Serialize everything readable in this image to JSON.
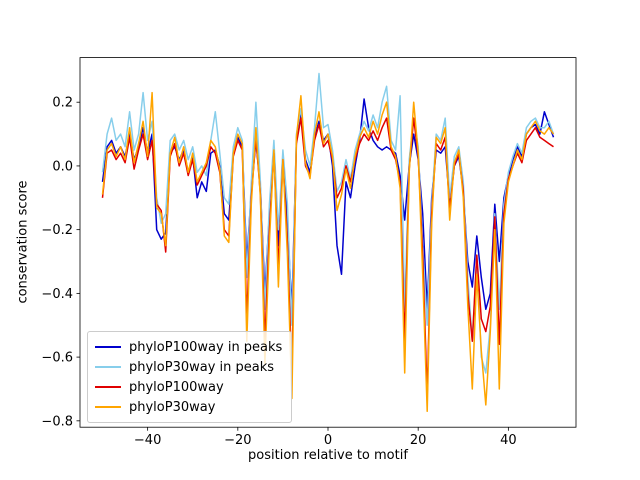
{
  "chart_data": {
    "type": "line",
    "title": "",
    "xlabel": "position relative to motif",
    "ylabel": "conservation score",
    "xlim": [
      -55,
      55
    ],
    "ylim": [
      -0.82,
      0.34
    ],
    "grid": false,
    "legend_position": "lower left",
    "xticks": {
      "values": [
        -40,
        -20,
        0,
        20,
        40
      ],
      "labels": [
        "−40",
        "−20",
        "0",
        "20",
        "40"
      ]
    },
    "yticks": {
      "values": [
        0.2,
        0.0,
        -0.2,
        -0.4,
        -0.6,
        -0.8
      ],
      "labels": [
        "0.2",
        "0.0",
        "−0.2",
        "−0.4",
        "−0.6",
        "−0.8"
      ]
    },
    "x": [
      -50,
      -49,
      -48,
      -47,
      -46,
      -45,
      -44,
      -43,
      -42,
      -41,
      -40,
      -39,
      -38,
      -37,
      -36,
      -35,
      -34,
      -33,
      -32,
      -31,
      -30,
      -29,
      -28,
      -27,
      -26,
      -25,
      -24,
      -23,
      -22,
      -21,
      -20,
      -19,
      -18,
      -17,
      -16,
      -15,
      -14,
      -13,
      -12,
      -11,
      -10,
      -9,
      -8,
      -7,
      -6,
      -5,
      -4,
      -3,
      -2,
      -1,
      0,
      1,
      2,
      3,
      4,
      5,
      6,
      7,
      8,
      9,
      10,
      11,
      12,
      13,
      14,
      15,
      16,
      17,
      18,
      19,
      20,
      21,
      22,
      23,
      24,
      25,
      26,
      27,
      28,
      29,
      30,
      31,
      32,
      33,
      34,
      35,
      36,
      37,
      38,
      39,
      40,
      41,
      42,
      43,
      44,
      45,
      46,
      47,
      48,
      49,
      50
    ],
    "series": [
      {
        "name": "phyloP100way in peaks",
        "color": "#0000cd",
        "values": [
          -0.05,
          0.06,
          0.08,
          0.04,
          0.06,
          0.03,
          0.1,
          0.02,
          0.06,
          0.12,
          0.04,
          0.1,
          -0.2,
          -0.23,
          -0.21,
          0.04,
          0.06,
          0.02,
          0.05,
          -0.02,
          0.03,
          -0.1,
          -0.05,
          -0.08,
          0.04,
          0.05,
          0.0,
          -0.15,
          -0.17,
          0.04,
          0.09,
          0.06,
          -0.3,
          -0.08,
          0.08,
          -0.07,
          -0.4,
          -0.15,
          0.05,
          -0.25,
          0.03,
          -0.18,
          -0.45,
          0.08,
          0.16,
          0.02,
          -0.02,
          0.09,
          0.14,
          0.08,
          0.1,
          0.0,
          -0.25,
          -0.34,
          -0.05,
          -0.1,
          0.0,
          0.08,
          0.21,
          0.12,
          0.08,
          0.06,
          0.05,
          0.06,
          0.05,
          0.04,
          -0.03,
          -0.17,
          0.0,
          0.1,
          0.02,
          -0.15,
          -0.45,
          -0.1,
          0.05,
          0.04,
          0.06,
          -0.12,
          0.0,
          0.03,
          -0.08,
          -0.3,
          -0.38,
          -0.22,
          -0.35,
          -0.45,
          -0.4,
          -0.12,
          -0.3,
          -0.1,
          -0.03,
          0.02,
          0.06,
          0.03,
          0.1,
          0.12,
          0.13,
          0.1,
          0.17,
          0.13,
          0.09
        ]
      },
      {
        "name": "phyloP30way in peaks",
        "color": "#87ceeb",
        "values": [
          -0.02,
          0.1,
          0.15,
          0.08,
          0.1,
          0.06,
          0.17,
          0.05,
          0.1,
          0.23,
          0.08,
          0.14,
          -0.1,
          -0.18,
          -0.15,
          0.08,
          0.1,
          0.05,
          0.08,
          0.02,
          0.06,
          -0.02,
          0.0,
          -0.03,
          0.08,
          0.17,
          0.04,
          -0.1,
          -0.12,
          0.06,
          0.12,
          0.08,
          -0.35,
          -0.05,
          0.2,
          -0.05,
          -0.45,
          -0.12,
          0.08,
          -0.2,
          0.05,
          -0.12,
          -0.5,
          0.1,
          0.18,
          0.05,
          0.0,
          0.12,
          0.29,
          0.12,
          0.13,
          0.05,
          -0.08,
          -0.05,
          0.02,
          -0.04,
          0.05,
          0.1,
          0.14,
          0.11,
          0.16,
          0.12,
          0.2,
          0.25,
          0.08,
          0.05,
          0.22,
          -0.45,
          0.02,
          0.15,
          0.06,
          -0.25,
          -0.5,
          -0.12,
          0.1,
          0.08,
          0.15,
          -0.1,
          0.03,
          0.06,
          -0.05,
          -0.35,
          -0.55,
          -0.28,
          -0.6,
          -0.65,
          -0.5,
          -0.15,
          -0.45,
          -0.12,
          -0.02,
          0.03,
          0.07,
          0.04,
          0.12,
          0.14,
          0.15,
          0.12,
          0.12,
          0.14,
          0.1
        ]
      },
      {
        "name": "phyloP100way",
        "color": "#e00000",
        "values": [
          -0.1,
          0.04,
          0.05,
          0.02,
          0.04,
          0.01,
          0.09,
          -0.01,
          0.05,
          0.1,
          0.02,
          0.08,
          -0.12,
          -0.14,
          -0.27,
          0.03,
          0.07,
          0.0,
          0.04,
          -0.03,
          0.02,
          -0.06,
          -0.03,
          0.0,
          0.06,
          0.04,
          -0.02,
          -0.2,
          -0.22,
          0.03,
          0.08,
          0.05,
          -0.48,
          -0.1,
          0.09,
          -0.09,
          -0.55,
          -0.2,
          0.04,
          -0.32,
          0.02,
          -0.24,
          -0.65,
          0.07,
          0.15,
          0.0,
          -0.03,
          0.08,
          0.13,
          0.06,
          0.08,
          0.02,
          -0.1,
          -0.07,
          0.0,
          -0.05,
          0.02,
          0.07,
          0.1,
          0.08,
          0.11,
          0.08,
          0.12,
          0.15,
          0.05,
          0.02,
          -0.05,
          -0.55,
          -0.01,
          0.15,
          0.03,
          -0.28,
          -0.72,
          -0.15,
          0.07,
          0.05,
          0.09,
          -0.14,
          0.0,
          0.04,
          -0.08,
          -0.4,
          -0.55,
          -0.28,
          -0.48,
          -0.52,
          -0.44,
          -0.16,
          -0.56,
          -0.15,
          -0.04,
          0.0,
          0.04,
          0.01,
          0.08,
          0.1,
          0.12,
          0.09,
          0.08,
          0.07,
          0.06
        ]
      },
      {
        "name": "phyloP30way",
        "color": "#ffa500",
        "values": [
          -0.09,
          0.05,
          0.07,
          0.03,
          0.06,
          0.02,
          0.12,
          0.01,
          0.07,
          0.14,
          0.03,
          0.23,
          -0.13,
          -0.15,
          -0.25,
          0.04,
          0.09,
          0.01,
          0.06,
          -0.02,
          0.04,
          -0.05,
          -0.02,
          0.01,
          0.08,
          0.06,
          -0.01,
          -0.22,
          -0.24,
          0.04,
          0.1,
          0.07,
          -0.55,
          -0.12,
          0.12,
          -0.1,
          -0.62,
          -0.24,
          0.05,
          -0.38,
          0.02,
          -0.28,
          -0.73,
          0.09,
          0.22,
          0.01,
          -0.04,
          0.1,
          0.17,
          0.07,
          0.1,
          0.03,
          -0.14,
          -0.09,
          -0.01,
          -0.07,
          0.03,
          0.09,
          0.12,
          0.09,
          0.14,
          0.1,
          0.16,
          0.2,
          0.06,
          0.03,
          -0.07,
          -0.65,
          -0.02,
          0.2,
          0.04,
          -0.34,
          -0.77,
          -0.18,
          0.09,
          0.07,
          0.12,
          -0.17,
          0.01,
          0.05,
          -0.1,
          -0.44,
          -0.7,
          -0.34,
          -0.58,
          -0.75,
          -0.52,
          -0.2,
          -0.7,
          -0.18,
          -0.05,
          0.0,
          0.05,
          0.02,
          0.1,
          0.12,
          0.14,
          0.11,
          0.1,
          0.12,
          0.1
        ]
      }
    ]
  }
}
